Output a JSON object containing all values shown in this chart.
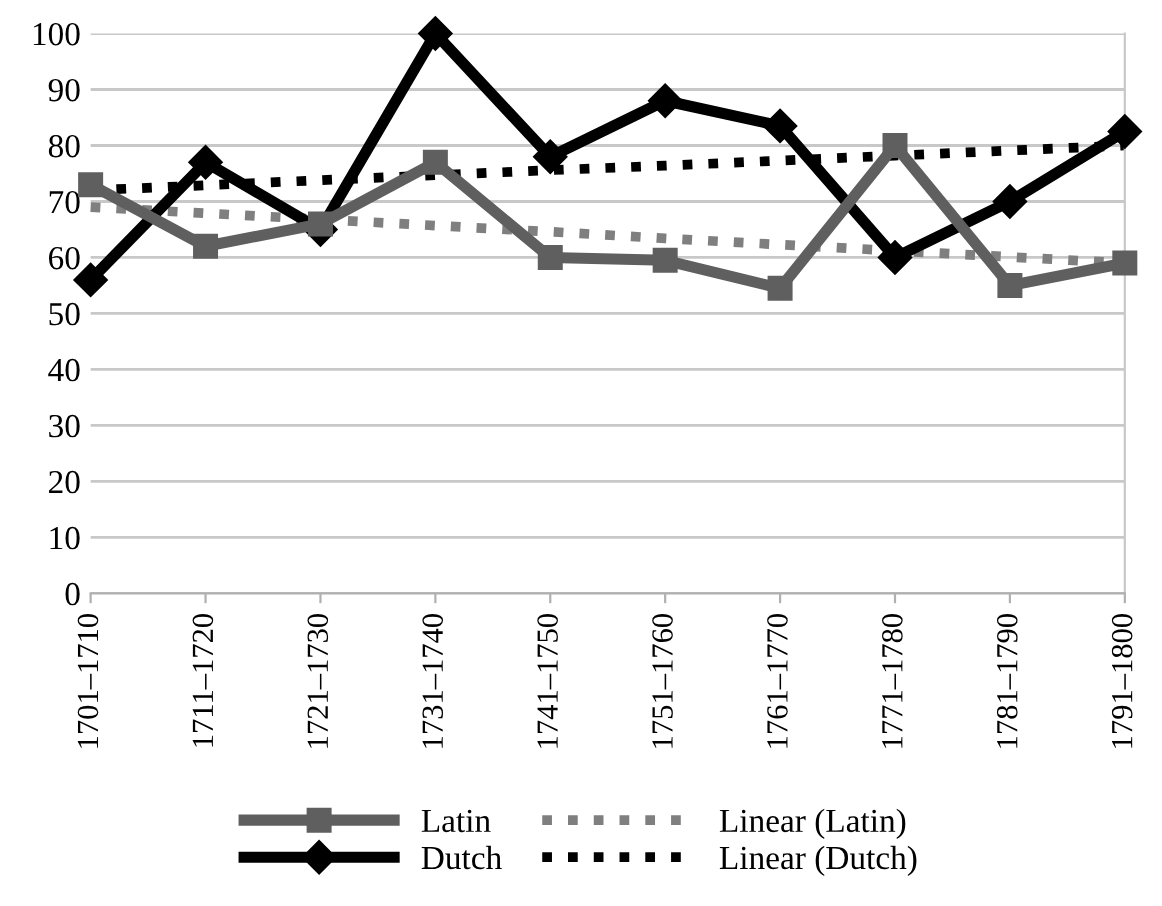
{
  "chart_data": {
    "type": "line",
    "categories": [
      "1701–1710",
      "1711–1720",
      "1721–1730",
      "1731–1740",
      "1741–1750",
      "1751–1760",
      "1761–1770",
      "1771–1780",
      "1781–1790",
      "1791–1800"
    ],
    "series": [
      {
        "name": "Latin",
        "color": "#5f5f5f",
        "marker": "square",
        "line_style": "solid",
        "values": [
          73,
          62,
          66,
          77,
          60,
          59.5,
          54.5,
          80,
          55,
          59
        ]
      },
      {
        "name": "Linear (Latin)",
        "color": "#7f7f7f",
        "marker": "none",
        "line_style": "dotted",
        "values": [
          69,
          67.9,
          66.8,
          65.7,
          64.6,
          63.4,
          62.3,
          61.2,
          60.1,
          59
        ]
      },
      {
        "name": "Dutch",
        "color": "#000000",
        "marker": "diamond",
        "line_style": "solid",
        "values": [
          56,
          77,
          65,
          100,
          78,
          88,
          83.5,
          60,
          70,
          82.5
        ]
      },
      {
        "name": "Linear (Dutch)",
        "color": "#000000",
        "marker": "none",
        "line_style": "dotted",
        "values": [
          72,
          72.9,
          73.8,
          74.7,
          75.6,
          76.4,
          77.3,
          78.2,
          79.1,
          80
        ]
      }
    ],
    "ylim": [
      0,
      100
    ],
    "yticks": [
      0,
      10,
      20,
      30,
      40,
      50,
      60,
      70,
      80,
      90,
      100
    ],
    "grid": "y",
    "legend": "bottom"
  }
}
